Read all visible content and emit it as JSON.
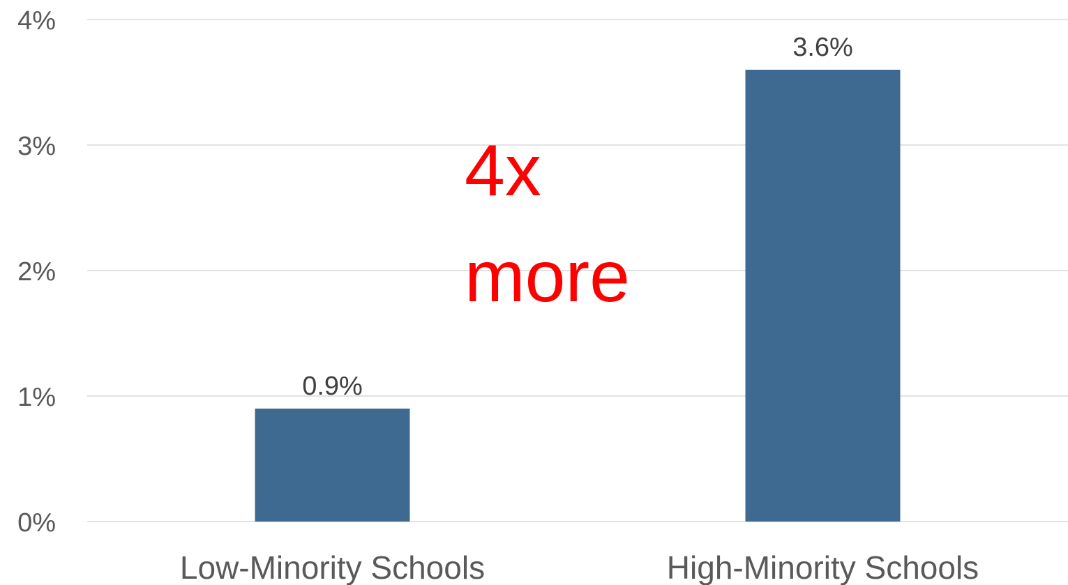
{
  "chart_data": {
    "type": "bar",
    "categories": [
      "Low-Minority Schools",
      "High-Minority Schools"
    ],
    "values": [
      0.9,
      3.6
    ],
    "value_labels": [
      "0.9%",
      "3.6%"
    ],
    "title": "",
    "xlabel": "",
    "ylabel": "",
    "ylim": [
      0,
      4
    ],
    "y_ticks": [
      0,
      1,
      2,
      3,
      4
    ],
    "y_tick_labels": [
      "0%",
      "1%",
      "2%",
      "3%",
      "4%"
    ],
    "grid": true,
    "legend": "none",
    "colors": {
      "bar": "#3e6990",
      "grid": "#d9d9d9",
      "annotation": "#ff0000"
    },
    "annotations": [
      {
        "lines": [
          "4x",
          "more"
        ]
      }
    ]
  }
}
